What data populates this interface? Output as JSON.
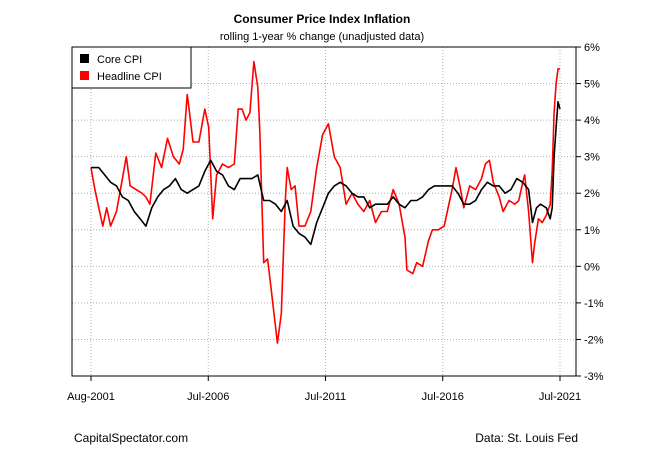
{
  "chart_data": {
    "type": "line",
    "title": "Consumer Price Index Inflation",
    "subtitle": "rolling 1-year % change (unadjusted data)",
    "xlabel": "",
    "ylabel": "",
    "x_range": [
      "2001-08",
      "2021-07"
    ],
    "x_ticks": [
      "Aug-2001",
      "Jul-2006",
      "Jul-2011",
      "Jul-2016",
      "Jul-2021"
    ],
    "y_ticks": [
      "6%",
      "5%",
      "4%",
      "3%",
      "2%",
      "1%",
      "0%",
      "-1%",
      "-2%",
      "-3%"
    ],
    "ylim": [
      -3,
      6
    ],
    "y_axis_side": "right",
    "grid": true,
    "legend_position": "top-left",
    "series": [
      {
        "name": "Core CPI",
        "color": "#000000",
        "points": [
          [
            "2001-08",
            2.7
          ],
          [
            "2001-12",
            2.7
          ],
          [
            "2002-03",
            2.5
          ],
          [
            "2002-06",
            2.3
          ],
          [
            "2002-09",
            2.2
          ],
          [
            "2002-12",
            1.9
          ],
          [
            "2003-03",
            1.8
          ],
          [
            "2003-06",
            1.5
          ],
          [
            "2003-09",
            1.3
          ],
          [
            "2003-12",
            1.1
          ],
          [
            "2004-03",
            1.6
          ],
          [
            "2004-06",
            1.9
          ],
          [
            "2004-09",
            2.1
          ],
          [
            "2004-12",
            2.2
          ],
          [
            "2005-03",
            2.4
          ],
          [
            "2005-06",
            2.1
          ],
          [
            "2005-09",
            2.0
          ],
          [
            "2005-12",
            2.1
          ],
          [
            "2006-03",
            2.2
          ],
          [
            "2006-06",
            2.6
          ],
          [
            "2006-09",
            2.9
          ],
          [
            "2006-12",
            2.6
          ],
          [
            "2007-03",
            2.5
          ],
          [
            "2007-06",
            2.2
          ],
          [
            "2007-09",
            2.1
          ],
          [
            "2007-12",
            2.4
          ],
          [
            "2008-03",
            2.4
          ],
          [
            "2008-06",
            2.4
          ],
          [
            "2008-09",
            2.5
          ],
          [
            "2008-12",
            1.8
          ],
          [
            "2009-03",
            1.8
          ],
          [
            "2009-06",
            1.7
          ],
          [
            "2009-09",
            1.5
          ],
          [
            "2009-12",
            1.8
          ],
          [
            "2010-03",
            1.1
          ],
          [
            "2010-06",
            0.9
          ],
          [
            "2010-09",
            0.8
          ],
          [
            "2010-12",
            0.6
          ],
          [
            "2011-03",
            1.2
          ],
          [
            "2011-06",
            1.6
          ],
          [
            "2011-09",
            2.0
          ],
          [
            "2011-12",
            2.2
          ],
          [
            "2012-03",
            2.3
          ],
          [
            "2012-06",
            2.2
          ],
          [
            "2012-09",
            2.0
          ],
          [
            "2012-12",
            1.9
          ],
          [
            "2013-03",
            1.9
          ],
          [
            "2013-06",
            1.6
          ],
          [
            "2013-09",
            1.7
          ],
          [
            "2013-12",
            1.7
          ],
          [
            "2014-03",
            1.7
          ],
          [
            "2014-06",
            1.9
          ],
          [
            "2014-09",
            1.7
          ],
          [
            "2014-12",
            1.6
          ],
          [
            "2015-03",
            1.8
          ],
          [
            "2015-06",
            1.8
          ],
          [
            "2015-09",
            1.9
          ],
          [
            "2015-12",
            2.1
          ],
          [
            "2016-03",
            2.2
          ],
          [
            "2016-06",
            2.2
          ],
          [
            "2016-09",
            2.2
          ],
          [
            "2016-12",
            2.2
          ],
          [
            "2017-03",
            2.0
          ],
          [
            "2017-06",
            1.7
          ],
          [
            "2017-09",
            1.7
          ],
          [
            "2017-12",
            1.8
          ],
          [
            "2018-03",
            2.1
          ],
          [
            "2018-06",
            2.3
          ],
          [
            "2018-09",
            2.2
          ],
          [
            "2018-12",
            2.2
          ],
          [
            "2019-03",
            2.0
          ],
          [
            "2019-06",
            2.1
          ],
          [
            "2019-09",
            2.4
          ],
          [
            "2019-12",
            2.3
          ],
          [
            "2020-03",
            2.1
          ],
          [
            "2020-05",
            1.2
          ],
          [
            "2020-07",
            1.6
          ],
          [
            "2020-09",
            1.7
          ],
          [
            "2020-12",
            1.6
          ],
          [
            "2021-02",
            1.3
          ],
          [
            "2021-03",
            1.6
          ],
          [
            "2021-04",
            3.0
          ],
          [
            "2021-05",
            3.8
          ],
          [
            "2021-06",
            4.5
          ],
          [
            "2021-07",
            4.3
          ]
        ]
      },
      {
        "name": "Headline CPI",
        "color": "#ff0000",
        "points": [
          [
            "2001-08",
            2.7
          ],
          [
            "2001-10",
            2.1
          ],
          [
            "2001-12",
            1.6
          ],
          [
            "2002-02",
            1.1
          ],
          [
            "2002-04",
            1.6
          ],
          [
            "2002-06",
            1.1
          ],
          [
            "2002-09",
            1.5
          ],
          [
            "2002-12",
            2.4
          ],
          [
            "2003-02",
            3.0
          ],
          [
            "2003-04",
            2.2
          ],
          [
            "2003-07",
            2.1
          ],
          [
            "2003-10",
            2.0
          ],
          [
            "2003-12",
            1.9
          ],
          [
            "2004-02",
            1.7
          ],
          [
            "2004-05",
            3.1
          ],
          [
            "2004-08",
            2.7
          ],
          [
            "2004-11",
            3.5
          ],
          [
            "2005-02",
            3.0
          ],
          [
            "2005-05",
            2.8
          ],
          [
            "2005-07",
            3.2
          ],
          [
            "2005-09",
            4.7
          ],
          [
            "2005-10",
            4.3
          ],
          [
            "2005-12",
            3.4
          ],
          [
            "2006-03",
            3.4
          ],
          [
            "2006-06",
            4.3
          ],
          [
            "2006-08",
            3.8
          ],
          [
            "2006-10",
            1.3
          ],
          [
            "2006-12",
            2.5
          ],
          [
            "2007-03",
            2.8
          ],
          [
            "2007-06",
            2.7
          ],
          [
            "2007-09",
            2.8
          ],
          [
            "2007-11",
            4.3
          ],
          [
            "2008-01",
            4.3
          ],
          [
            "2008-03",
            4.0
          ],
          [
            "2008-05",
            4.2
          ],
          [
            "2008-07",
            5.6
          ],
          [
            "2008-09",
            4.9
          ],
          [
            "2008-10",
            3.7
          ],
          [
            "2008-12",
            0.1
          ],
          [
            "2009-02",
            0.2
          ],
          [
            "2009-04",
            -0.7
          ],
          [
            "2009-07",
            -2.1
          ],
          [
            "2009-09",
            -1.3
          ],
          [
            "2009-11",
            1.8
          ],
          [
            "2009-12",
            2.7
          ],
          [
            "2010-02",
            2.1
          ],
          [
            "2010-04",
            2.2
          ],
          [
            "2010-06",
            1.1
          ],
          [
            "2010-09",
            1.1
          ],
          [
            "2010-12",
            1.5
          ],
          [
            "2011-03",
            2.7
          ],
          [
            "2011-06",
            3.6
          ],
          [
            "2011-09",
            3.9
          ],
          [
            "2011-12",
            3.0
          ],
          [
            "2012-03",
            2.7
          ],
          [
            "2012-06",
            1.7
          ],
          [
            "2012-09",
            2.0
          ],
          [
            "2012-12",
            1.7
          ],
          [
            "2013-03",
            1.5
          ],
          [
            "2013-06",
            1.8
          ],
          [
            "2013-09",
            1.2
          ],
          [
            "2013-12",
            1.5
          ],
          [
            "2014-03",
            1.5
          ],
          [
            "2014-06",
            2.1
          ],
          [
            "2014-09",
            1.7
          ],
          [
            "2014-12",
            0.8
          ],
          [
            "2015-01",
            -0.1
          ],
          [
            "2015-04",
            -0.2
          ],
          [
            "2015-06",
            0.1
          ],
          [
            "2015-09",
            0.0
          ],
          [
            "2015-12",
            0.7
          ],
          [
            "2016-02",
            1.0
          ],
          [
            "2016-05",
            1.0
          ],
          [
            "2016-08",
            1.1
          ],
          [
            "2016-10",
            1.6
          ],
          [
            "2016-12",
            2.1
          ],
          [
            "2017-02",
            2.7
          ],
          [
            "2017-04",
            2.2
          ],
          [
            "2017-06",
            1.6
          ],
          [
            "2017-09",
            2.2
          ],
          [
            "2017-12",
            2.1
          ],
          [
            "2018-03",
            2.4
          ],
          [
            "2018-05",
            2.8
          ],
          [
            "2018-07",
            2.9
          ],
          [
            "2018-09",
            2.3
          ],
          [
            "2018-12",
            1.9
          ],
          [
            "2019-02",
            1.5
          ],
          [
            "2019-05",
            1.8
          ],
          [
            "2019-08",
            1.7
          ],
          [
            "2019-10",
            1.8
          ],
          [
            "2019-12",
            2.3
          ],
          [
            "2020-01",
            2.5
          ],
          [
            "2020-03",
            1.5
          ],
          [
            "2020-05",
            0.1
          ],
          [
            "2020-06",
            0.6
          ],
          [
            "2020-08",
            1.3
          ],
          [
            "2020-10",
            1.2
          ],
          [
            "2020-12",
            1.4
          ],
          [
            "2021-02",
            1.7
          ],
          [
            "2021-03",
            2.6
          ],
          [
            "2021-04",
            4.2
          ],
          [
            "2021-05",
            5.0
          ],
          [
            "2021-06",
            5.4
          ],
          [
            "2021-07",
            5.4
          ]
        ]
      }
    ]
  },
  "footer": {
    "left": "CapitalSpectator.com",
    "right": "Data: St. Louis Fed"
  }
}
